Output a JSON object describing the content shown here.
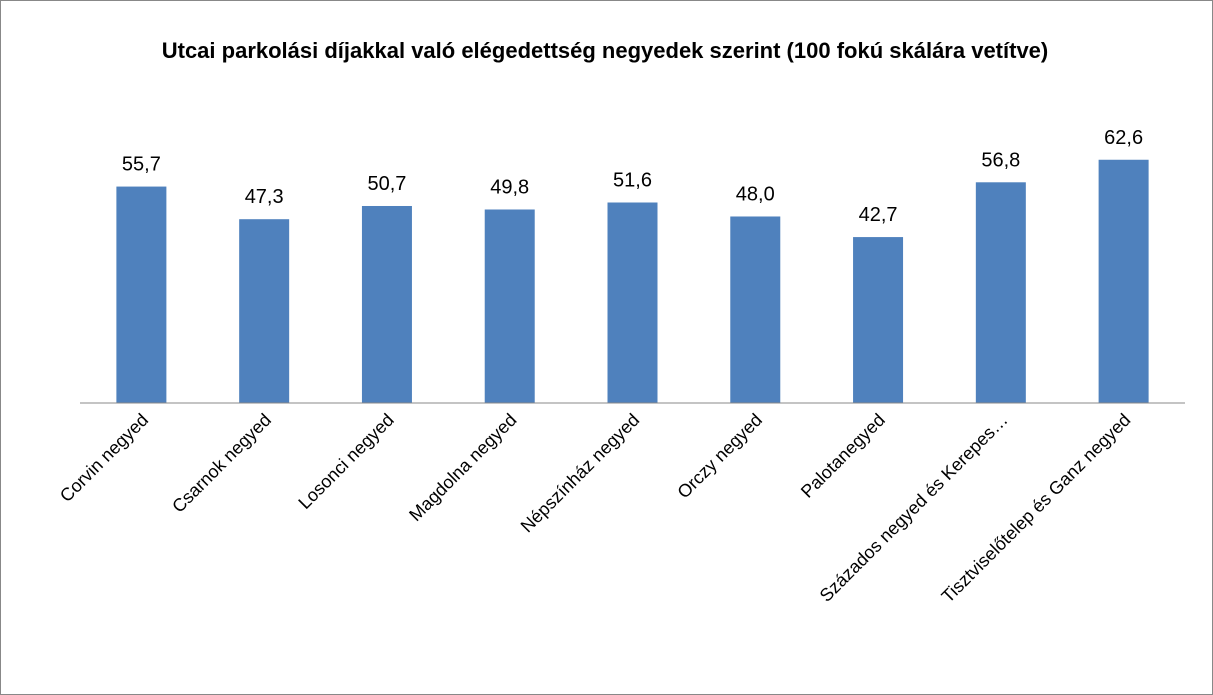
{
  "chart_data": {
    "type": "bar",
    "title": "Utcai parkolási díjakkal való elégedettség negyedek szerint (100 fokú skálára vetítve)",
    "categories": [
      "Corvin negyed",
      "Csarnok negyed",
      "Losonci negyed",
      "Magdolna negyed",
      "Népszínház negyed",
      "Orczy negyed",
      "Palotanegyed",
      "Százados negyed és Kerepes…",
      "Tisztviselőtelep és Ganz negyed"
    ],
    "values": [
      55.7,
      47.3,
      50.7,
      49.8,
      51.6,
      48.0,
      42.7,
      56.8,
      62.6
    ],
    "value_labels": [
      "55,7",
      "47,3",
      "50,7",
      "49,8",
      "51,6",
      "48,0",
      "42,7",
      "56,8",
      "62,6"
    ],
    "color": "#4f81bd",
    "ylim": [
      0,
      70
    ]
  }
}
